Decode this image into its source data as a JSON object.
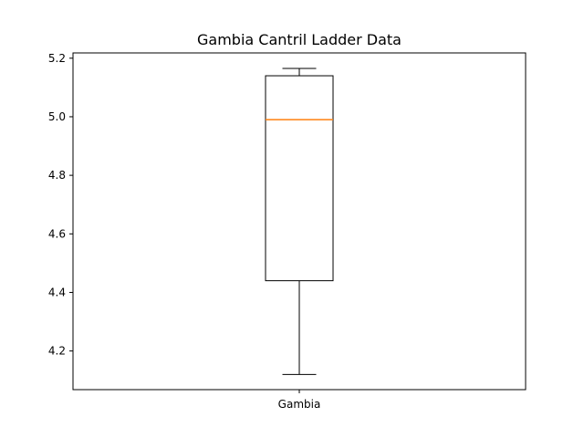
{
  "chart_data": {
    "type": "box",
    "title": "Gambia Cantril Ladder Data",
    "xlabel": "",
    "ylabel": "",
    "categories": [
      "Gambia"
    ],
    "boxes": [
      {
        "label": "Gambia",
        "whisker_low": 4.12,
        "q1": 4.44,
        "median": 4.99,
        "q3": 5.14,
        "whisker_high": 5.165
      }
    ],
    "ylim": [
      4.068,
      5.218
    ],
    "yticks": [
      4.2,
      4.4,
      4.6,
      4.8,
      5.0,
      5.2
    ],
    "ytick_labels": [
      "4.2",
      "4.4",
      "4.6",
      "4.8",
      "5.0",
      "5.2"
    ],
    "grid": false,
    "legend": "none",
    "colors": {
      "box": "#000000",
      "median": "#ff7f0e",
      "whisker": "#000000"
    }
  }
}
